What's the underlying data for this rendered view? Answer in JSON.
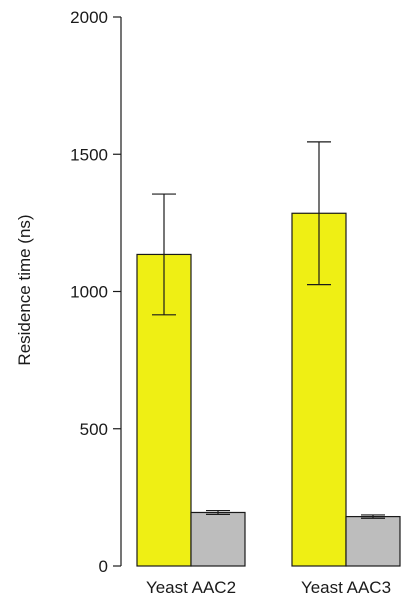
{
  "chart_data": {
    "type": "bar",
    "title": "",
    "xlabel": "",
    "ylabel": "Residence time (ns)",
    "ylim": [
      0,
      2000
    ],
    "yticks": [
      0,
      500,
      1000,
      1500,
      2000
    ],
    "grid": false,
    "categories": [
      "Yeast AAC2",
      "Yeast AAC3"
    ],
    "series": [
      {
        "color": "#efef14",
        "values": [
          1135,
          1285
        ],
        "err_low": [
          915,
          1025
        ],
        "err_high": [
          1355,
          1545
        ]
      },
      {
        "color": "#bdbdbd",
        "values": [
          195,
          180
        ],
        "err_low": [
          188,
          174
        ],
        "err_high": [
          202,
          186
        ]
      }
    ]
  }
}
